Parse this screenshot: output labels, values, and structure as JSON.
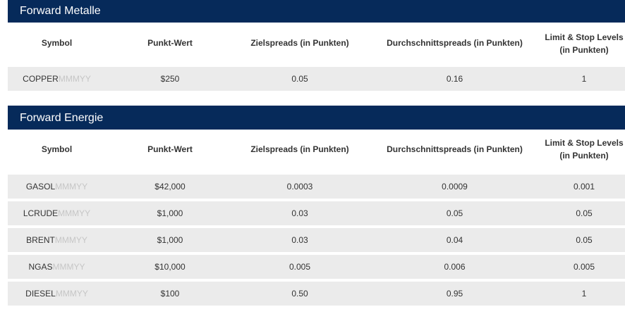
{
  "metals": {
    "title": "Forward Metalle",
    "columns": [
      "Symbol",
      "Punkt-Wert",
      "Zielspreads (in Punkten)",
      "Durchschnittspreads (in Punkten)",
      "Limit & Stop Levels",
      "(in Punkten)"
    ],
    "rows": [
      {
        "symbol": "COPPER",
        "suffix": "MMMYY",
        "point_value": "$250",
        "target_spread": "0.05",
        "avg_spread": "0.16",
        "limit_stop": "1"
      }
    ]
  },
  "energy": {
    "title": "Forward Energie",
    "columns": [
      "Symbol",
      "Punkt-Wert",
      "Zielspreads (in Punkten)",
      "Durchschnittspreads (in Punkten)",
      "Limit & Stop Levels",
      "(in Punkten)"
    ],
    "rows": [
      {
        "symbol": "GASOL",
        "suffix": "MMMYY",
        "point_value": "$42,000",
        "target_spread": "0.0003",
        "avg_spread": "0.0009",
        "limit_stop": "0.001"
      },
      {
        "symbol": "LCRUDE",
        "suffix": "MMMYY",
        "point_value": "$1,000",
        "target_spread": "0.03",
        "avg_spread": "0.05",
        "limit_stop": "0.05"
      },
      {
        "symbol": "BRENT",
        "suffix": "MMMYY",
        "point_value": "$1,000",
        "target_spread": "0.03",
        "avg_spread": "0.04",
        "limit_stop": "0.05"
      },
      {
        "symbol": "NGAS",
        "suffix": "MMMYY",
        "point_value": "$10,000",
        "target_spread": "0.005",
        "avg_spread": "0.006",
        "limit_stop": "0.005"
      },
      {
        "symbol": "DIESEL",
        "suffix": "MMMYY",
        "point_value": "$100",
        "target_spread": "0.50",
        "avg_spread": "0.95",
        "limit_stop": "1"
      }
    ]
  },
  "colors": {
    "header_bg": "#062a5a",
    "row_bg": "#ebebeb",
    "suffix_text": "#c6c6c6"
  }
}
